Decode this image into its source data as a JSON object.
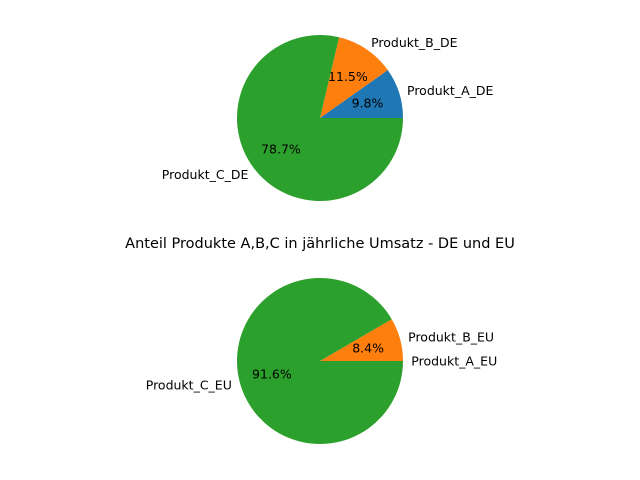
{
  "figure": {
    "title": "Anteil Produkte A,B,C in jährliche Umsatz - DE und EU"
  },
  "chart_data": [
    {
      "type": "pie",
      "title": "",
      "labels": [
        "Produkt_A_DE",
        "Produkt_B_DE",
        "Produkt_C_DE"
      ],
      "values": [
        9.8,
        11.5,
        78.7
      ],
      "percent_labels": [
        "9.8%",
        "11.5%",
        "78.7%"
      ],
      "colors": [
        "#1f77b4",
        "#ff7f0e",
        "#2ca02c"
      ],
      "start_angle": 0,
      "direction": "counterclockwise"
    },
    {
      "type": "pie",
      "title": "",
      "labels": [
        "Produkt_A_EU",
        "Produkt_B_EU",
        "Produkt_C_EU"
      ],
      "values": [
        0.0,
        8.4,
        91.6
      ],
      "percent_labels": [
        "0.0%",
        "8.4%",
        "91.6%"
      ],
      "colors": [
        "#1f77b4",
        "#ff7f0e",
        "#2ca02c"
      ],
      "start_angle": 0,
      "direction": "counterclockwise"
    }
  ]
}
